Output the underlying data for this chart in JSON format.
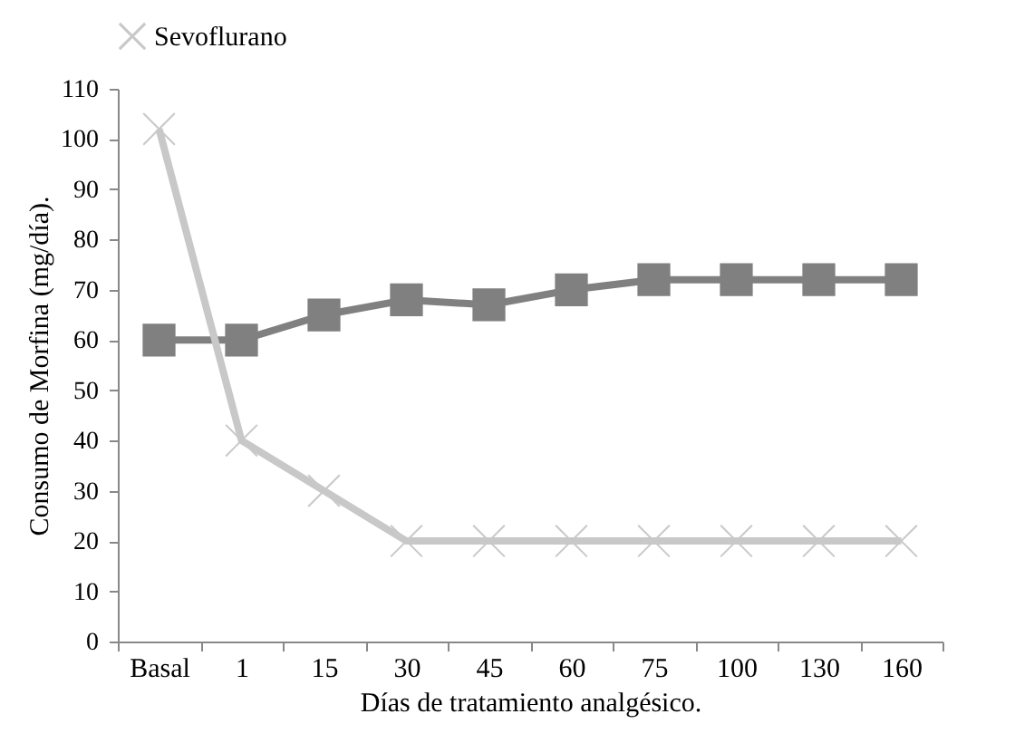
{
  "chart_data": {
    "type": "line",
    "xlabel": "Días de tratamiento analgésico.",
    "ylabel": "Consumo de Morfina (mg/día).",
    "categories": [
      "Basal",
      "1",
      "15",
      "30",
      "45",
      "60",
      "75",
      "100",
      "130",
      "160"
    ],
    "series": [
      {
        "color": "#808080",
        "marker": "square",
        "values": [
          60,
          60,
          65,
          68,
          67,
          70,
          72,
          72,
          72,
          72
        ]
      },
      {
        "name": "Sevoflurano",
        "color": "#c8c8c8",
        "marker": "cross",
        "values": [
          102,
          40,
          30,
          20,
          20,
          20,
          20,
          20,
          20,
          20
        ]
      }
    ],
    "ylim": [
      0,
      110
    ],
    "yticks": [
      0,
      10,
      20,
      30,
      40,
      50,
      60,
      70,
      80,
      90,
      100,
      110
    ],
    "grid": false,
    "legend": "top"
  }
}
